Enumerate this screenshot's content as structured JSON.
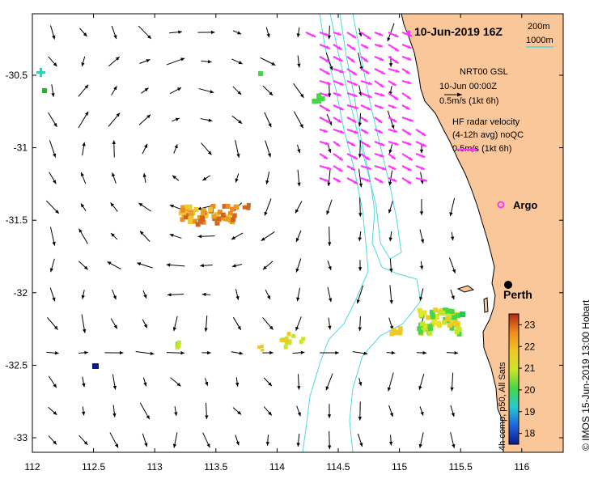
{
  "title": "10-Jun-2019 16Z",
  "depth_legend": {
    "contour_1": "200m",
    "contour_2": "1000m",
    "contour_color": "#4fd8e0"
  },
  "model_legend": {
    "line1": "NRT00 GSL",
    "line2": "10-Jun 00:00Z",
    "scale": "0.5m/s (1kt 6h)",
    "arrow_color": "#000000"
  },
  "radar_legend": {
    "line1": "HF radar velocity",
    "line2": "(4-12h avg) noQC",
    "scale": "0.5m/s (1kt 6h)",
    "arrow_color": "#ff33ff"
  },
  "argo_label": "Argo",
  "city_label": "Perth",
  "colorbar": {
    "label": "4h comp, p50, All Sats",
    "ticks": [
      "23",
      "22",
      "21",
      "20",
      "19",
      "18"
    ],
    "min": 17.5,
    "max": 23.5,
    "stops": [
      "#0a1a8c",
      "#1e64dc",
      "#28c8d2",
      "#46d746",
      "#c8e628",
      "#f0c828",
      "#f08c1e",
      "#b42814"
    ]
  },
  "credit": "© IMOS 15-Jun-2019 13:00 Hobart",
  "axes": {
    "x_ticks": [
      "112",
      "112.5",
      "113",
      "113.5",
      "114",
      "114.5",
      "115",
      "115.5",
      "116"
    ],
    "y_ticks": [
      "-30.5",
      "-31",
      "-31.5",
      "-32",
      "-32.5",
      "-33"
    ]
  },
  "colors": {
    "land": "#f9c79a",
    "ocean": "#ffffff",
    "argo": "#ff33ff"
  }
}
